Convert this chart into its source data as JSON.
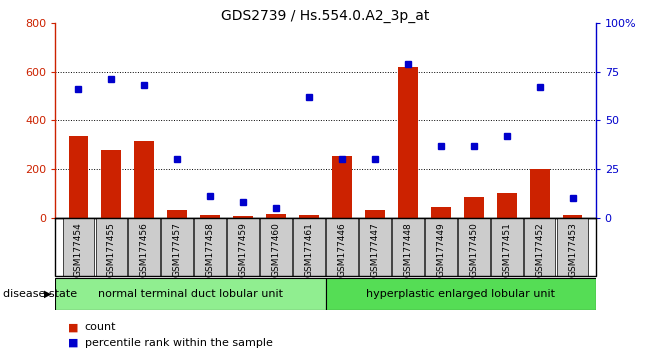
{
  "title": "GDS2739 / Hs.554.0.A2_3p_at",
  "samples": [
    "GSM177454",
    "GSM177455",
    "GSM177456",
    "GSM177457",
    "GSM177458",
    "GSM177459",
    "GSM177460",
    "GSM177461",
    "GSM177446",
    "GSM177447",
    "GSM177448",
    "GSM177449",
    "GSM177450",
    "GSM177451",
    "GSM177452",
    "GSM177453"
  ],
  "counts": [
    335,
    280,
    315,
    30,
    10,
    5,
    15,
    10,
    255,
    30,
    620,
    45,
    85,
    100,
    200,
    10
  ],
  "percentiles": [
    66,
    71,
    68,
    30,
    11,
    8,
    5,
    62,
    30,
    30,
    79,
    37,
    37,
    42,
    67,
    10
  ],
  "group1_label": "normal terminal duct lobular unit",
  "group2_label": "hyperplastic enlarged lobular unit",
  "group1_count": 8,
  "group2_count": 8,
  "bar_color": "#cc2200",
  "dot_color": "#0000cc",
  "ylim_left": [
    0,
    800
  ],
  "ylim_right": [
    0,
    100
  ],
  "yticks_left": [
    0,
    200,
    400,
    600,
    800
  ],
  "yticks_right": [
    0,
    25,
    50,
    75,
    100
  ],
  "disease_state_label": "disease state",
  "legend_count_label": "count",
  "legend_pct_label": "percentile rank within the sample",
  "group1_color": "#90ee90",
  "group2_color": "#55dd55",
  "tick_bg_color": "#cccccc",
  "right_axis_color": "#0000cc",
  "left_axis_color": "#cc2200"
}
